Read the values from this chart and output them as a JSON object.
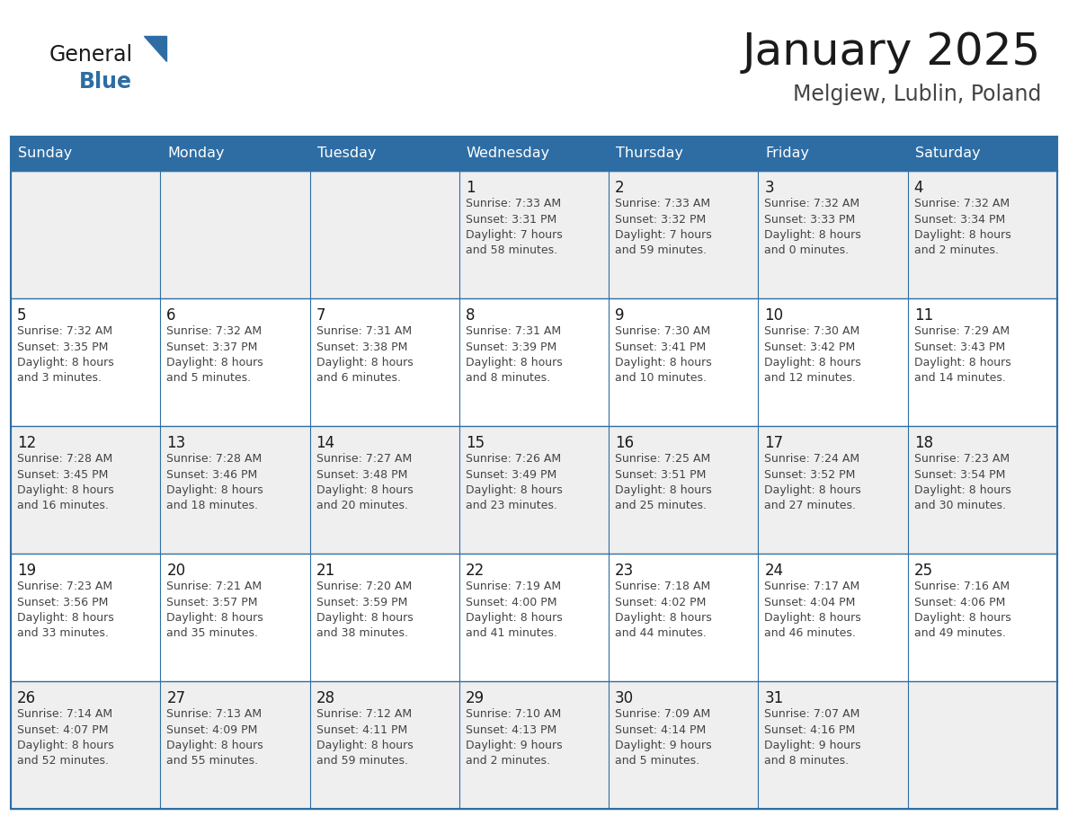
{
  "title": "January 2025",
  "subtitle": "Melgiew, Lublin, Poland",
  "header_bg": "#2E6DA4",
  "header_text_color": "#FFFFFF",
  "cell_bg_odd": "#EFEFEF",
  "cell_bg_even": "#FFFFFF",
  "border_color": "#2E6DA4",
  "title_color": "#1a1a1a",
  "subtitle_color": "#444444",
  "day_number_color": "#1a1a1a",
  "cell_text_color": "#444444",
  "days_of_week": [
    "Sunday",
    "Monday",
    "Tuesday",
    "Wednesday",
    "Thursday",
    "Friday",
    "Saturday"
  ],
  "weeks": [
    [
      {
        "day": null,
        "info": null
      },
      {
        "day": null,
        "info": null
      },
      {
        "day": null,
        "info": null
      },
      {
        "day": 1,
        "info": "Sunrise: 7:33 AM\nSunset: 3:31 PM\nDaylight: 7 hours\nand 58 minutes."
      },
      {
        "day": 2,
        "info": "Sunrise: 7:33 AM\nSunset: 3:32 PM\nDaylight: 7 hours\nand 59 minutes."
      },
      {
        "day": 3,
        "info": "Sunrise: 7:32 AM\nSunset: 3:33 PM\nDaylight: 8 hours\nand 0 minutes."
      },
      {
        "day": 4,
        "info": "Sunrise: 7:32 AM\nSunset: 3:34 PM\nDaylight: 8 hours\nand 2 minutes."
      }
    ],
    [
      {
        "day": 5,
        "info": "Sunrise: 7:32 AM\nSunset: 3:35 PM\nDaylight: 8 hours\nand 3 minutes."
      },
      {
        "day": 6,
        "info": "Sunrise: 7:32 AM\nSunset: 3:37 PM\nDaylight: 8 hours\nand 5 minutes."
      },
      {
        "day": 7,
        "info": "Sunrise: 7:31 AM\nSunset: 3:38 PM\nDaylight: 8 hours\nand 6 minutes."
      },
      {
        "day": 8,
        "info": "Sunrise: 7:31 AM\nSunset: 3:39 PM\nDaylight: 8 hours\nand 8 minutes."
      },
      {
        "day": 9,
        "info": "Sunrise: 7:30 AM\nSunset: 3:41 PM\nDaylight: 8 hours\nand 10 minutes."
      },
      {
        "day": 10,
        "info": "Sunrise: 7:30 AM\nSunset: 3:42 PM\nDaylight: 8 hours\nand 12 minutes."
      },
      {
        "day": 11,
        "info": "Sunrise: 7:29 AM\nSunset: 3:43 PM\nDaylight: 8 hours\nand 14 minutes."
      }
    ],
    [
      {
        "day": 12,
        "info": "Sunrise: 7:28 AM\nSunset: 3:45 PM\nDaylight: 8 hours\nand 16 minutes."
      },
      {
        "day": 13,
        "info": "Sunrise: 7:28 AM\nSunset: 3:46 PM\nDaylight: 8 hours\nand 18 minutes."
      },
      {
        "day": 14,
        "info": "Sunrise: 7:27 AM\nSunset: 3:48 PM\nDaylight: 8 hours\nand 20 minutes."
      },
      {
        "day": 15,
        "info": "Sunrise: 7:26 AM\nSunset: 3:49 PM\nDaylight: 8 hours\nand 23 minutes."
      },
      {
        "day": 16,
        "info": "Sunrise: 7:25 AM\nSunset: 3:51 PM\nDaylight: 8 hours\nand 25 minutes."
      },
      {
        "day": 17,
        "info": "Sunrise: 7:24 AM\nSunset: 3:52 PM\nDaylight: 8 hours\nand 27 minutes."
      },
      {
        "day": 18,
        "info": "Sunrise: 7:23 AM\nSunset: 3:54 PM\nDaylight: 8 hours\nand 30 minutes."
      }
    ],
    [
      {
        "day": 19,
        "info": "Sunrise: 7:23 AM\nSunset: 3:56 PM\nDaylight: 8 hours\nand 33 minutes."
      },
      {
        "day": 20,
        "info": "Sunrise: 7:21 AM\nSunset: 3:57 PM\nDaylight: 8 hours\nand 35 minutes."
      },
      {
        "day": 21,
        "info": "Sunrise: 7:20 AM\nSunset: 3:59 PM\nDaylight: 8 hours\nand 38 minutes."
      },
      {
        "day": 22,
        "info": "Sunrise: 7:19 AM\nSunset: 4:00 PM\nDaylight: 8 hours\nand 41 minutes."
      },
      {
        "day": 23,
        "info": "Sunrise: 7:18 AM\nSunset: 4:02 PM\nDaylight: 8 hours\nand 44 minutes."
      },
      {
        "day": 24,
        "info": "Sunrise: 7:17 AM\nSunset: 4:04 PM\nDaylight: 8 hours\nand 46 minutes."
      },
      {
        "day": 25,
        "info": "Sunrise: 7:16 AM\nSunset: 4:06 PM\nDaylight: 8 hours\nand 49 minutes."
      }
    ],
    [
      {
        "day": 26,
        "info": "Sunrise: 7:14 AM\nSunset: 4:07 PM\nDaylight: 8 hours\nand 52 minutes."
      },
      {
        "day": 27,
        "info": "Sunrise: 7:13 AM\nSunset: 4:09 PM\nDaylight: 8 hours\nand 55 minutes."
      },
      {
        "day": 28,
        "info": "Sunrise: 7:12 AM\nSunset: 4:11 PM\nDaylight: 8 hours\nand 59 minutes."
      },
      {
        "day": 29,
        "info": "Sunrise: 7:10 AM\nSunset: 4:13 PM\nDaylight: 9 hours\nand 2 minutes."
      },
      {
        "day": 30,
        "info": "Sunrise: 7:09 AM\nSunset: 4:14 PM\nDaylight: 9 hours\nand 5 minutes."
      },
      {
        "day": 31,
        "info": "Sunrise: 7:07 AM\nSunset: 4:16 PM\nDaylight: 9 hours\nand 8 minutes."
      },
      {
        "day": null,
        "info": null
      }
    ]
  ],
  "fig_width": 11.88,
  "fig_height": 9.18,
  "dpi": 100
}
